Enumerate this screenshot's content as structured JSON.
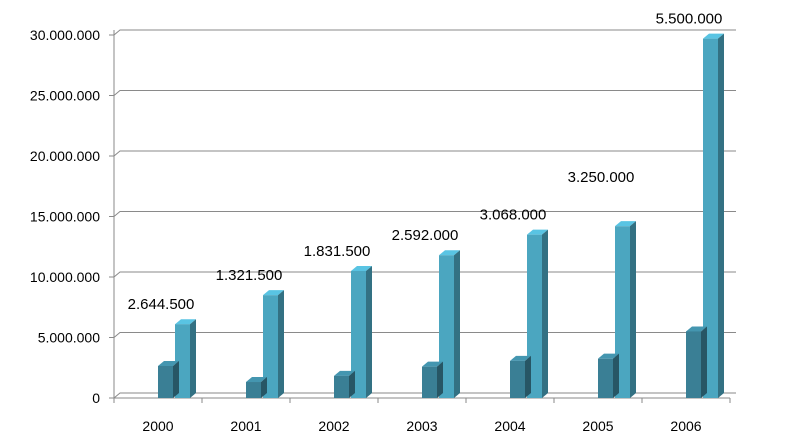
{
  "chart_data": {
    "type": "bar",
    "categories": [
      "2000",
      "2001",
      "2002",
      "2003",
      "2004",
      "2005",
      "2006"
    ],
    "series": [
      {
        "values": [
          2644500,
          1321500,
          1831500,
          2592000,
          3068000,
          3250000,
          5500000
        ],
        "color": "#3a7f95"
      },
      {
        "values": [
          6100000,
          8500000,
          10500000,
          11800000,
          13500000,
          14200000,
          29700000
        ],
        "color": "#4ba6c0"
      }
    ],
    "data_labels": [
      "2.644.500",
      "1.321.500",
      "1.831.500",
      "2.592.000",
      "3.068.000",
      "3.250.000",
      "5.500.000"
    ],
    "y_ticks": [
      "0",
      "5.000.000",
      "10.000.000",
      "15.000.000",
      "20.000.000",
      "25.000.000",
      "30.000.000"
    ],
    "ylim": [
      0,
      30000000
    ],
    "y_step": 5000000,
    "grid": true,
    "legend": "none",
    "gridline_color": "#8a8a8a",
    "axis_color": "#8a8a8a"
  }
}
